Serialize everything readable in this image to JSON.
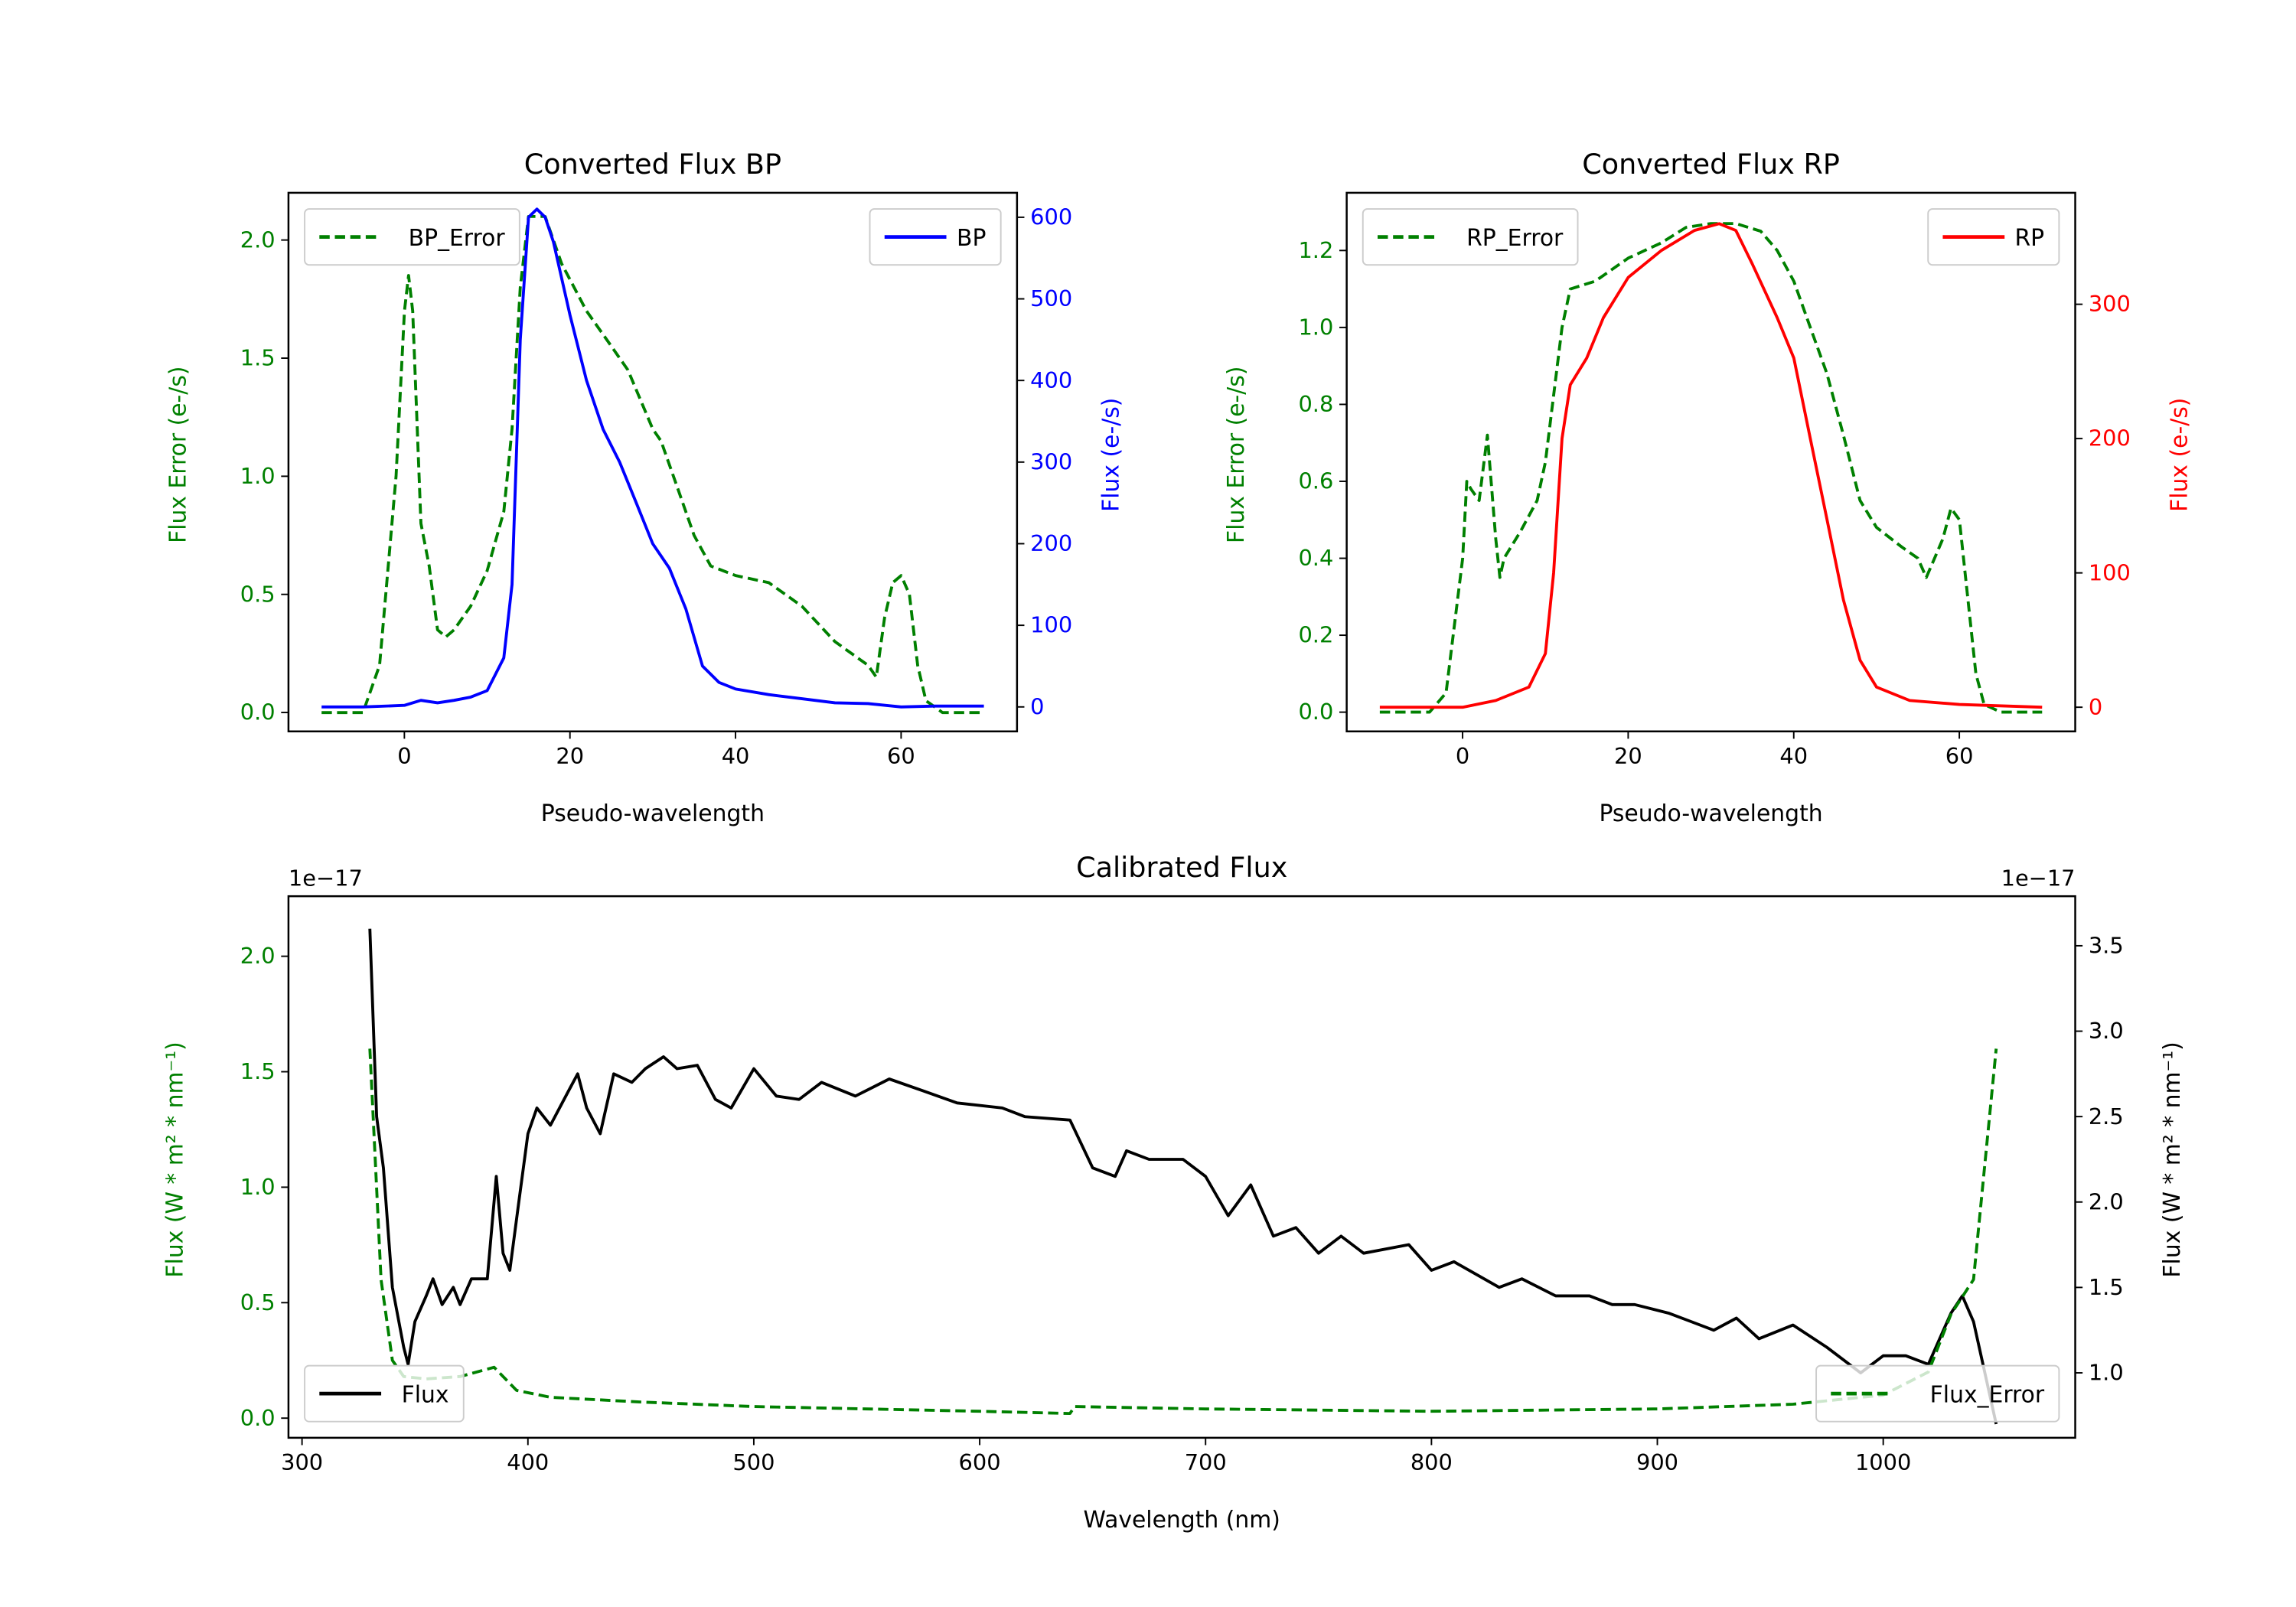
{
  "chart_data": [
    {
      "type": "line",
      "title": "Converted Flux BP",
      "xlabel": "Pseudo-wavelength",
      "ylabel": "Flux Error (e-/s)",
      "ylabel_right": "Flux (e-/s)",
      "xlim": [
        -14,
        74
      ],
      "xticks": [
        0,
        20,
        40,
        60
      ],
      "ylim": [
        -0.08,
        2.2
      ],
      "yticks": [
        "0.0",
        "0.5",
        "1.0",
        "1.5",
        "2.0"
      ],
      "ylim_right": [
        -30,
        630
      ],
      "yticks_right": [
        "0",
        "100",
        "200",
        "300",
        "400",
        "500",
        "600"
      ],
      "left_color": "#008000",
      "right_color": "#0000ff",
      "series": [
        {
          "name": "BP_Error",
          "axis": "left",
          "style": "dashed",
          "color": "#008000",
          "legend": "top-left",
          "x": [
            -10,
            -5,
            -3,
            -1,
            0,
            0.5,
            1,
            2,
            3,
            4,
            5,
            6,
            8,
            10,
            12,
            13,
            14,
            15,
            17,
            19,
            22,
            25,
            27,
            30,
            31,
            33,
            35,
            37,
            40,
            44,
            48,
            52,
            56,
            57,
            58,
            59,
            60,
            61,
            62,
            63,
            65,
            70
          ],
          "y": [
            0,
            0,
            0.2,
            1.0,
            1.7,
            1.85,
            1.7,
            0.8,
            0.62,
            0.35,
            0.32,
            0.35,
            0.45,
            0.6,
            0.85,
            1.2,
            1.8,
            2.1,
            2.1,
            1.9,
            1.7,
            1.55,
            1.45,
            1.2,
            1.15,
            0.95,
            0.75,
            0.62,
            0.58,
            0.55,
            0.45,
            0.3,
            0.2,
            0.15,
            0.4,
            0.55,
            0.58,
            0.5,
            0.2,
            0.05,
            0,
            0
          ]
        },
        {
          "name": "BP",
          "axis": "right",
          "style": "solid",
          "color": "#0000ff",
          "legend": "top-right",
          "x": [
            -10,
            -5,
            0,
            2,
            4,
            6,
            8,
            10,
            12,
            13,
            14,
            15,
            16,
            17,
            18,
            20,
            22,
            24,
            26,
            28,
            30,
            32,
            34,
            36,
            38,
            40,
            44,
            48,
            52,
            56,
            60,
            64,
            70
          ],
          "y": [
            0,
            0,
            2,
            8,
            5,
            8,
            12,
            20,
            60,
            150,
            450,
            600,
            610,
            600,
            570,
            480,
            400,
            340,
            300,
            250,
            200,
            170,
            120,
            50,
            30,
            22,
            15,
            10,
            5,
            4,
            0,
            1,
            1
          ]
        }
      ]
    },
    {
      "type": "line",
      "title": "Converted Flux RP",
      "xlabel": "Pseudo-wavelength",
      "ylabel": "Flux Error (e-/s)",
      "ylabel_right": "Flux (e-/s)",
      "xlim": [
        -14,
        74
      ],
      "xticks": [
        0,
        20,
        40,
        60
      ],
      "ylim": [
        -0.05,
        1.35
      ],
      "yticks": [
        "0.0",
        "0.2",
        "0.4",
        "0.6",
        "0.8",
        "1.0",
        "1.2"
      ],
      "ylim_right": [
        -18,
        383
      ],
      "yticks_right": [
        "0",
        "100",
        "200",
        "300"
      ],
      "left_color": "#008000",
      "right_color": "#ff0000",
      "series": [
        {
          "name": "RP_Error",
          "axis": "left",
          "style": "dashed",
          "color": "#008000",
          "legend": "top-left",
          "x": [
            -10,
            -4,
            -2,
            0,
            0.5,
            1,
            2,
            3,
            4,
            4.5,
            5,
            7,
            9,
            10,
            12,
            13,
            16,
            20,
            24,
            27,
            30,
            33,
            36,
            38,
            40,
            42,
            44,
            46,
            48,
            50,
            53,
            55,
            56,
            57,
            58,
            59,
            60,
            61,
            62,
            63,
            65,
            70
          ],
          "y": [
            0,
            0,
            0.05,
            0.4,
            0.6,
            0.58,
            0.55,
            0.72,
            0.45,
            0.35,
            0.4,
            0.47,
            0.55,
            0.65,
            1.0,
            1.1,
            1.12,
            1.18,
            1.22,
            1.26,
            1.27,
            1.27,
            1.25,
            1.2,
            1.12,
            1.0,
            0.88,
            0.72,
            0.55,
            0.48,
            0.43,
            0.4,
            0.35,
            0.4,
            0.45,
            0.53,
            0.5,
            0.3,
            0.1,
            0.02,
            0,
            0
          ]
        },
        {
          "name": "RP",
          "axis": "right",
          "style": "solid",
          "color": "#ff0000",
          "legend": "top-right",
          "x": [
            -10,
            0,
            4,
            8,
            10,
            11,
            12,
            13,
            15,
            17,
            20,
            24,
            28,
            31,
            33,
            35,
            38,
            40,
            42,
            44,
            46,
            48,
            50,
            54,
            60,
            70
          ],
          "y": [
            0,
            0,
            5,
            15,
            40,
            100,
            200,
            240,
            260,
            290,
            320,
            340,
            355,
            360,
            355,
            330,
            290,
            260,
            200,
            140,
            80,
            35,
            15,
            5,
            2,
            0
          ]
        }
      ]
    },
    {
      "type": "line",
      "title": "Calibrated Flux",
      "xlabel": "Wavelength (nm)",
      "ylabel": "Flux (W * m² * nm⁻¹)",
      "ylabel_right": "Flux (W * m² * nm⁻¹)",
      "offset_left": "1e−17",
      "offset_right": "1e−17",
      "xlim": [
        294,
        1085
      ],
      "xticks": [
        300,
        400,
        500,
        600,
        700,
        800,
        900,
        1000
      ],
      "ylim": [
        -0.085,
        2.26
      ],
      "yticks": [
        "0.0",
        "0.5",
        "1.0",
        "1.5",
        "2.0"
      ],
      "ylim_right": [
        0.62,
        3.79
      ],
      "yticks_right": [
        "1.0",
        "1.5",
        "2.0",
        "2.5",
        "3.0",
        "3.5"
      ],
      "left_color": "#008000",
      "right_color": "#000000",
      "series": [
        {
          "name": "Flux",
          "axis": "right",
          "style": "solid",
          "color": "#000000",
          "legend": "lower-left",
          "x": [
            330,
            333,
            336,
            340,
            345,
            347,
            350,
            355,
            358,
            362,
            367,
            370,
            375,
            378,
            382,
            386,
            389,
            392,
            396,
            400,
            404,
            410,
            418,
            422,
            426,
            432,
            438,
            446,
            452,
            460,
            466,
            475,
            483,
            490,
            500,
            510,
            520,
            530,
            545,
            560,
            575,
            590,
            610,
            620,
            640,
            650,
            660,
            665,
            675,
            690,
            700,
            710,
            720,
            730,
            740,
            750,
            760,
            770,
            790,
            800,
            810,
            830,
            840,
            855,
            870,
            880,
            890,
            905,
            915,
            925,
            935,
            945,
            960,
            975,
            990,
            1000,
            1010,
            1020,
            1030,
            1035,
            1040,
            1050
          ],
          "y": [
            3.6,
            2.5,
            2.2,
            1.5,
            1.15,
            1.05,
            1.3,
            1.45,
            1.55,
            1.4,
            1.5,
            1.4,
            1.55,
            1.55,
            1.55,
            2.15,
            1.7,
            1.6,
            2.0,
            2.4,
            2.55,
            2.45,
            2.65,
            2.75,
            2.55,
            2.4,
            2.75,
            2.7,
            2.78,
            2.85,
            2.78,
            2.8,
            2.6,
            2.55,
            2.78,
            2.62,
            2.6,
            2.7,
            2.62,
            2.72,
            2.65,
            2.58,
            2.55,
            2.5,
            2.48,
            2.2,
            2.15,
            2.3,
            2.25,
            2.25,
            2.15,
            1.92,
            2.1,
            1.8,
            1.85,
            1.7,
            1.8,
            1.7,
            1.75,
            1.6,
            1.65,
            1.5,
            1.55,
            1.45,
            1.45,
            1.4,
            1.4,
            1.35,
            1.3,
            1.25,
            1.32,
            1.2,
            1.28,
            1.15,
            1.0,
            1.1,
            1.1,
            1.05,
            1.35,
            1.45,
            1.3,
            0.7
          ]
        },
        {
          "name": "Flux_Error",
          "axis": "left",
          "style": "dashed",
          "color": "#008000",
          "legend": "lower-right",
          "x": [
            330,
            335,
            340,
            345,
            355,
            370,
            385,
            395,
            410,
            450,
            500,
            600,
            640,
            642,
            700,
            800,
            900,
            960,
            1000,
            1020,
            1030,
            1040,
            1045,
            1050
          ],
          "y": [
            1.6,
            0.6,
            0.25,
            0.18,
            0.17,
            0.18,
            0.22,
            0.12,
            0.09,
            0.07,
            0.05,
            0.03,
            0.02,
            0.05,
            0.04,
            0.03,
            0.04,
            0.06,
            0.1,
            0.2,
            0.45,
            0.6,
            1.1,
            1.6
          ]
        }
      ]
    }
  ]
}
